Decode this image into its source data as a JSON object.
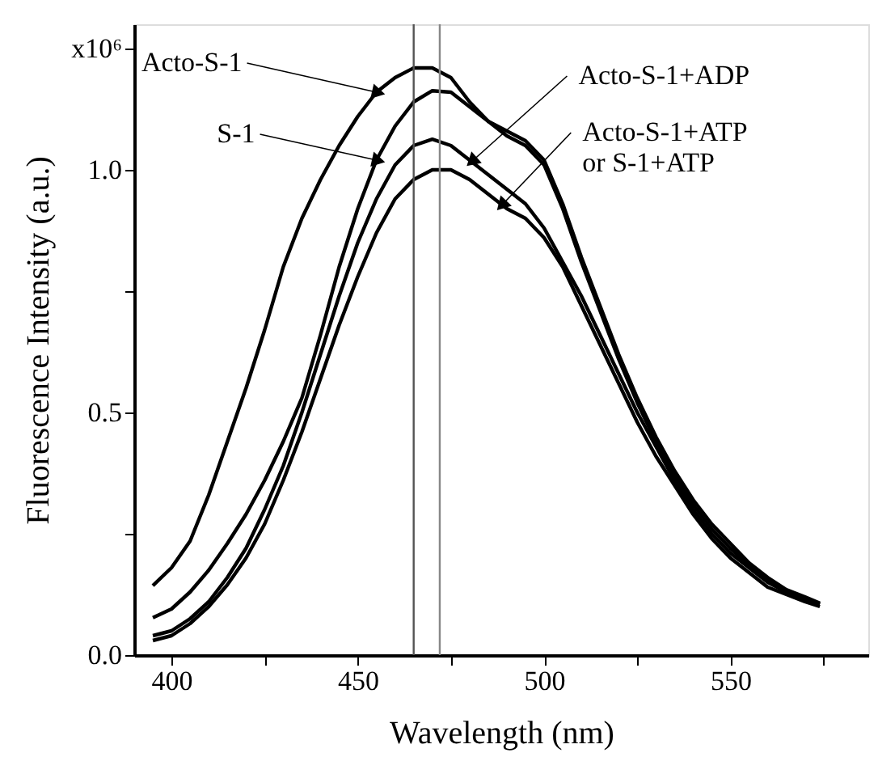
{
  "chart_data": {
    "type": "line",
    "xlabel": "Wavelength (nm)",
    "ylabel": "Fluorescence Intensity (a.u.)",
    "xlim": [
      390,
      587
    ],
    "ylim": [
      0,
      1.3
    ],
    "xticks": [
      400,
      {
        "value": 425,
        "label": null
      },
      450,
      {
        "value": 475,
        "label": null
      },
      500,
      {
        "value": 525,
        "label": null
      },
      550,
      {
        "value": 575,
        "label": null
      }
    ],
    "yticks": [
      {
        "value": 0,
        "label": "0.0"
      },
      {
        "value": 0.25,
        "label": null
      },
      0.5,
      {
        "value": 0.75,
        "label": null
      },
      {
        "value": 1,
        "label": "1.0"
      },
      {
        "value": 1.25,
        "label": "x10⁶"
      }
    ],
    "grid": false,
    "marker": "none",
    "line_style": "solid",
    "x": [
      395,
      400,
      405,
      410,
      415,
      420,
      425,
      430,
      435,
      440,
      445,
      450,
      455,
      460,
      465,
      470,
      475,
      480,
      485,
      490,
      495,
      500,
      505,
      510,
      515,
      520,
      525,
      530,
      535,
      540,
      545,
      550,
      555,
      560,
      565,
      570,
      574
    ],
    "series": [
      {
        "color": "#000000",
        "values": [
          0.143,
          0.18,
          0.235,
          0.33,
          0.44,
          0.55,
          0.67,
          0.8,
          0.9,
          0.98,
          1.05,
          1.11,
          1.16,
          1.19,
          1.21,
          1.21,
          1.19,
          1.14,
          1.1,
          1.08,
          1.06,
          1.02,
          0.93,
          0.82,
          0.72,
          0.62,
          0.53,
          0.45,
          0.38,
          0.32,
          0.27,
          0.23,
          0.19,
          0.16,
          0.135,
          0.12,
          0.107
        ]
      },
      {
        "color": "#000000",
        "values": [
          0.077,
          0.095,
          0.13,
          0.175,
          0.23,
          0.29,
          0.36,
          0.44,
          0.53,
          0.66,
          0.8,
          0.92,
          1.02,
          1.09,
          1.14,
          1.163,
          1.16,
          1.13,
          1.1,
          1.07,
          1.05,
          1.01,
          0.92,
          0.81,
          0.71,
          0.61,
          0.52,
          0.44,
          0.37,
          0.31,
          0.26,
          0.22,
          0.185,
          0.155,
          0.13,
          0.115,
          0.105
        ]
      },
      {
        "color": "#000000",
        "values": [
          0.04,
          0.05,
          0.075,
          0.11,
          0.16,
          0.22,
          0.3,
          0.39,
          0.5,
          0.62,
          0.74,
          0.85,
          0.94,
          1.01,
          1.05,
          1.063,
          1.05,
          1.02,
          0.99,
          0.96,
          0.93,
          0.88,
          0.81,
          0.74,
          0.66,
          0.58,
          0.5,
          0.43,
          0.36,
          0.3,
          0.25,
          0.21,
          0.18,
          0.15,
          0.13,
          0.115,
          0.105
        ]
      },
      {
        "color": "#000000",
        "values": [
          0.03,
          0.04,
          0.065,
          0.1,
          0.145,
          0.2,
          0.27,
          0.36,
          0.46,
          0.57,
          0.68,
          0.78,
          0.87,
          0.94,
          0.98,
          1.0,
          1.0,
          0.98,
          0.95,
          0.92,
          0.9,
          0.86,
          0.8,
          0.72,
          0.64,
          0.56,
          0.48,
          0.41,
          0.35,
          0.29,
          0.24,
          0.2,
          0.17,
          0.14,
          0.125,
          0.11,
          0.1
        ]
      }
    ],
    "ref_lines": [
      {
        "axis": "x",
        "value": 465,
        "color": "#555555"
      },
      {
        "axis": "x",
        "value": 472,
        "color": "#888888"
      }
    ],
    "annotations": [
      {
        "text": "Acto-S-1",
        "x": 455,
        "y": 1.16
      },
      {
        "text": "S-1",
        "x": 455,
        "y": 1.02
      },
      {
        "text": "Acto-S-1+ADP",
        "x": 481,
        "y": 1.02
      },
      {
        "text": "Acto-S-1+ATP\n  or   S-1+ATP",
        "x": 489,
        "y": 0.93
      }
    ]
  }
}
